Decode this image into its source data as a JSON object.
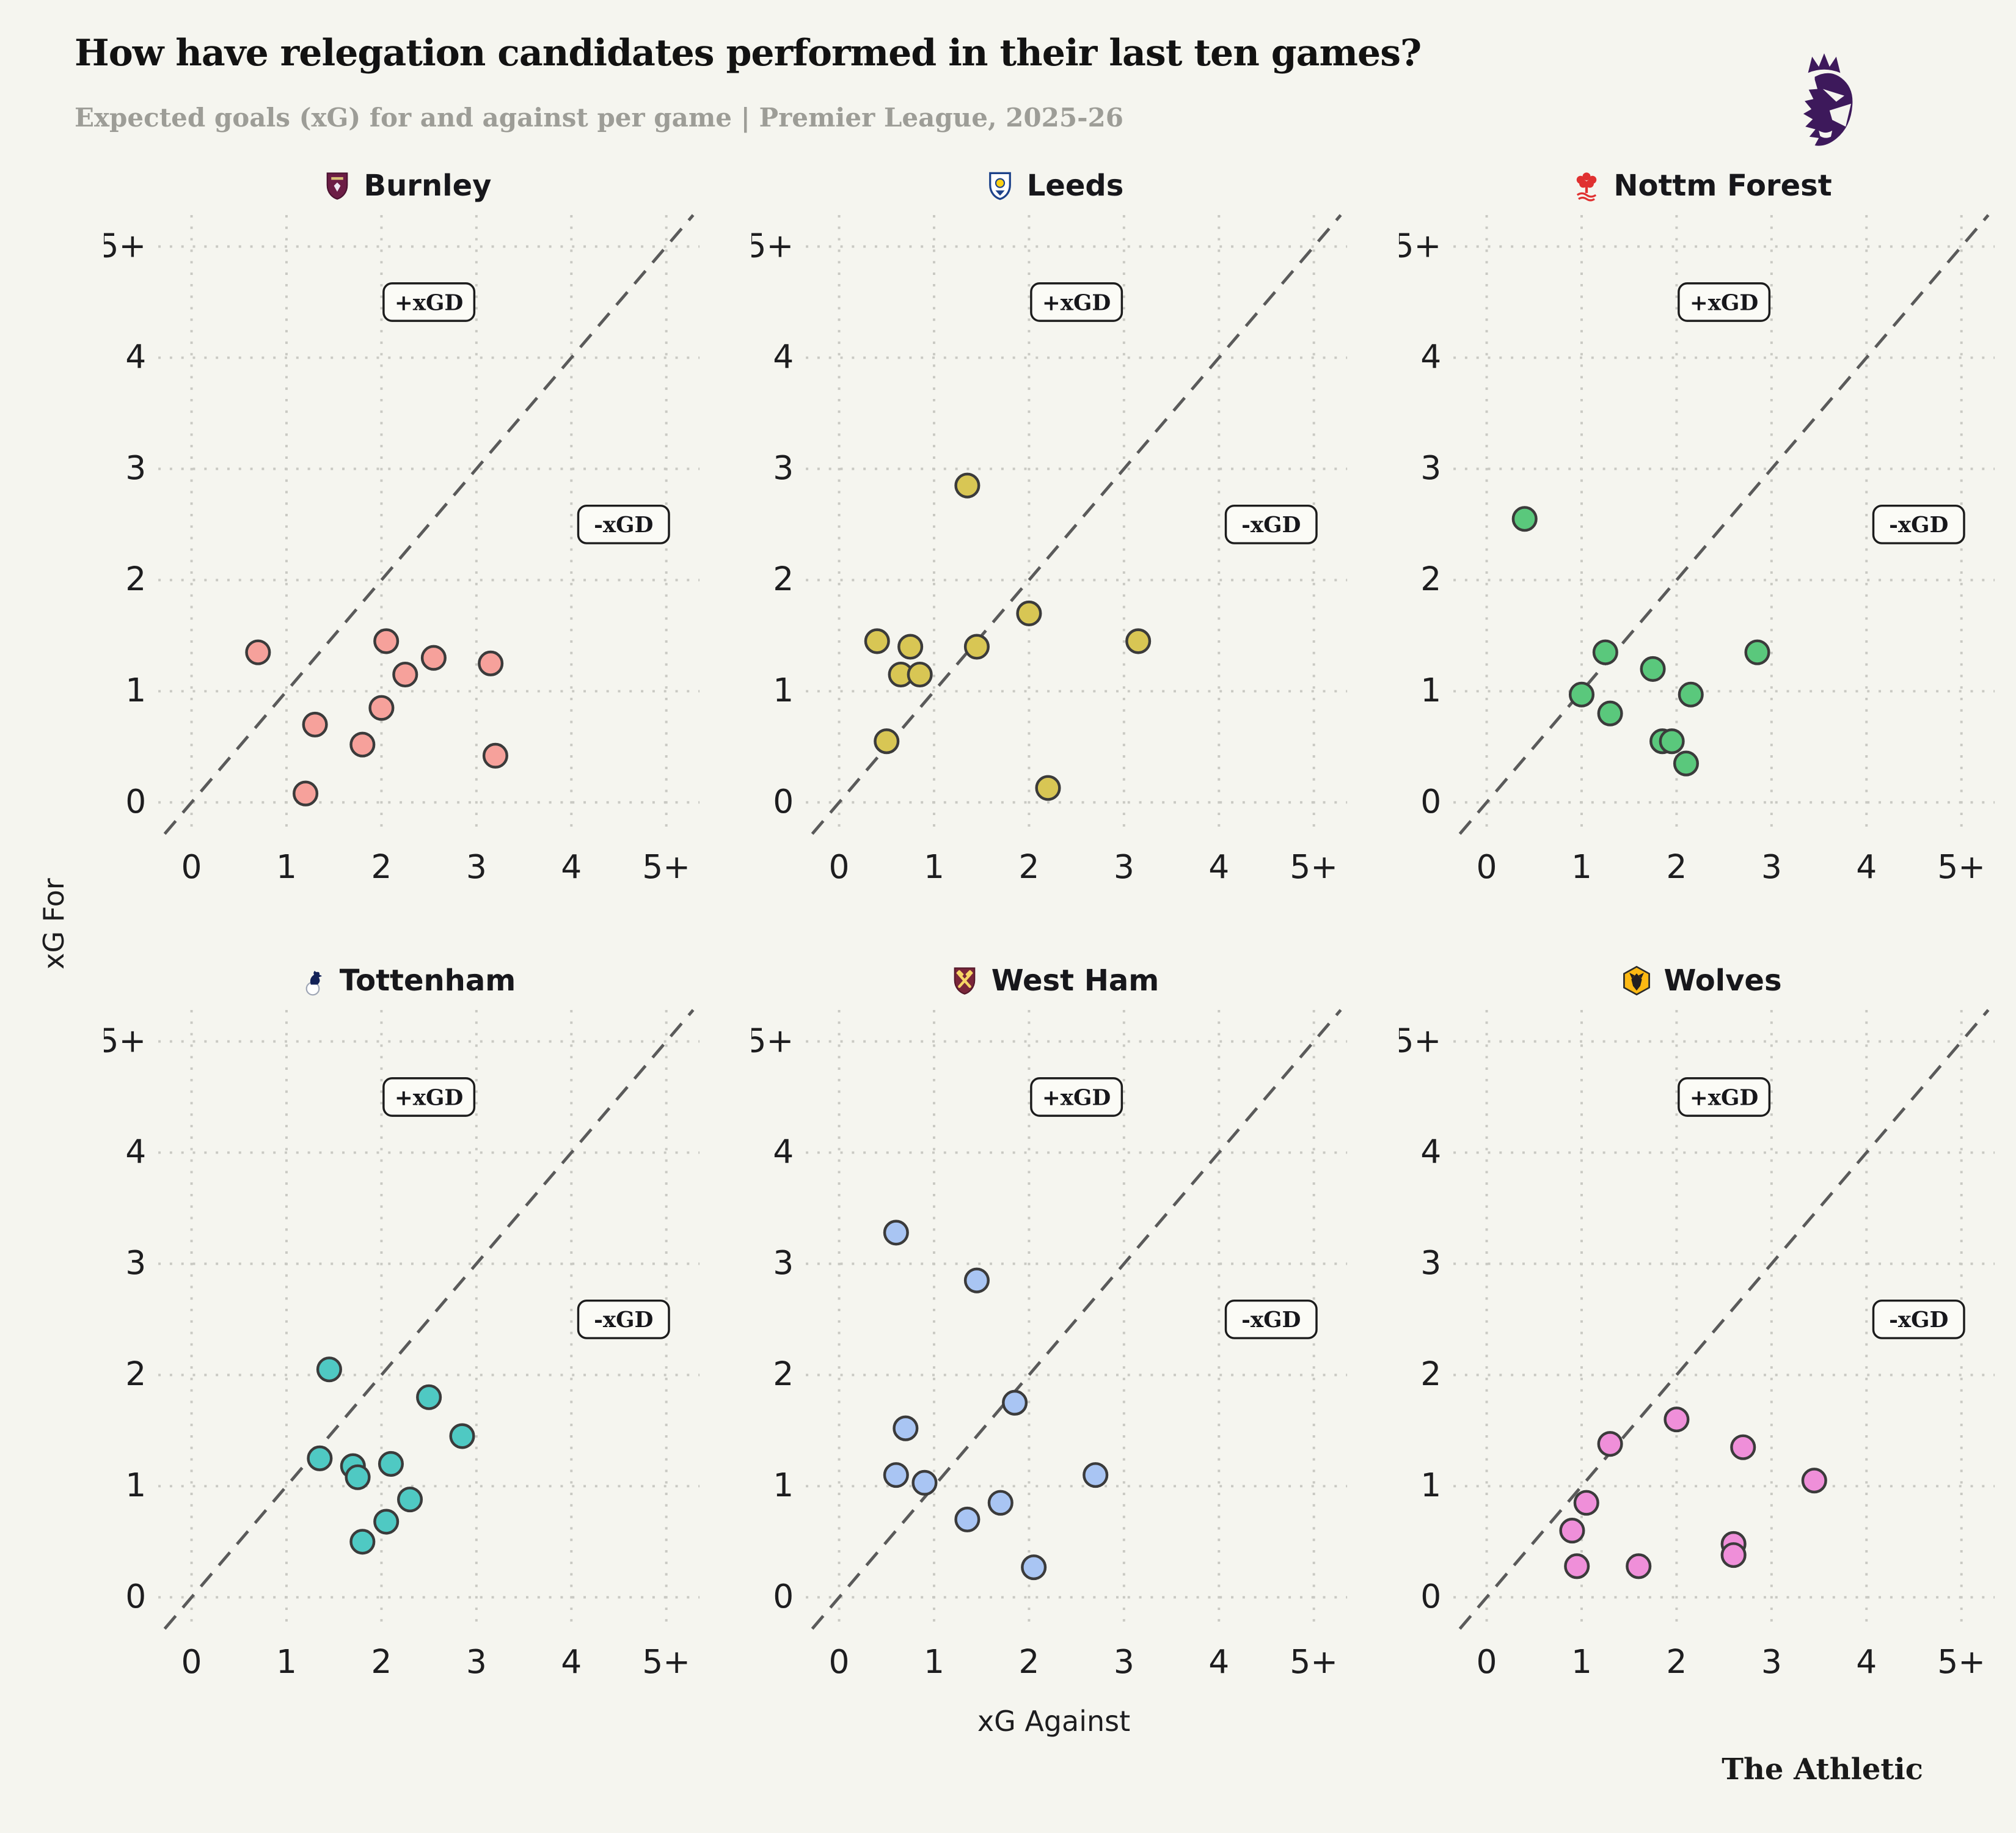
{
  "header": {
    "title": "How have relegation candidates performed in their last ten games?",
    "subtitle": "Expected goals (xG) for and against per game | Premier League, 2025-26"
  },
  "branding": {
    "league_logo_icon": "premier-league-lion-icon",
    "credit": "The Athletic"
  },
  "axes": {
    "xlabel": "xG Against",
    "ylabel": "xG For",
    "ticks": [
      "0",
      "1",
      "2",
      "3",
      "4",
      "5+"
    ],
    "range": [
      0,
      5
    ],
    "grid": "dotted",
    "diagonal_reference_line": "y = x, dashed"
  },
  "annotations": {
    "above_diagonal": "+xGD",
    "below_diagonal": "-xGD"
  },
  "colors": {
    "background": "#F5F5EF",
    "grid_dots": "#C9C9C3",
    "diagonal": "#5A5A5A",
    "ink": "#17171B",
    "subtitle": "#9D9D97",
    "annotation_box_fill": "#FBFBF6",
    "point_stroke": "#3B3B3B",
    "premier_league_purple": "#3D195B"
  },
  "chart_data": [
    {
      "type": "scatter",
      "id": "burnley",
      "title": "Burnley",
      "badge_icon": "burnley-badge-icon",
      "point_color": "#F6A19B",
      "xlabel": "xG Against",
      "ylabel": "xG For",
      "xlim": [
        0,
        5
      ],
      "ylim": [
        0,
        5
      ],
      "points": [
        [
          0.7,
          1.35
        ],
        [
          2.05,
          1.45
        ],
        [
          2.25,
          1.15
        ],
        [
          2.55,
          1.3
        ],
        [
          3.15,
          1.25
        ],
        [
          2.0,
          0.85
        ],
        [
          1.3,
          0.7
        ],
        [
          1.8,
          0.52
        ],
        [
          3.2,
          0.42
        ],
        [
          1.2,
          0.08
        ]
      ]
    },
    {
      "type": "scatter",
      "id": "leeds",
      "title": "Leeds",
      "badge_icon": "leeds-badge-icon",
      "point_color": "#D8C654",
      "xlabel": "xG Against",
      "ylabel": "xG For",
      "xlim": [
        0,
        5
      ],
      "ylim": [
        0,
        5
      ],
      "points": [
        [
          1.35,
          2.85
        ],
        [
          2.0,
          1.7
        ],
        [
          0.4,
          1.45
        ],
        [
          0.75,
          1.4
        ],
        [
          1.45,
          1.4
        ],
        [
          3.15,
          1.45
        ],
        [
          0.65,
          1.15
        ],
        [
          0.85,
          1.15
        ],
        [
          0.5,
          0.55
        ],
        [
          2.2,
          0.13
        ]
      ]
    },
    {
      "type": "scatter",
      "id": "nottm-forest",
      "title": "Nottm Forest",
      "badge_icon": "nottm-forest-badge-icon",
      "point_color": "#5AC87C",
      "xlabel": "xG Against",
      "ylabel": "xG For",
      "xlim": [
        0,
        5
      ],
      "ylim": [
        0,
        5
      ],
      "points": [
        [
          0.4,
          2.55
        ],
        [
          1.25,
          1.35
        ],
        [
          2.85,
          1.35
        ],
        [
          1.75,
          1.2
        ],
        [
          1.0,
          0.97
        ],
        [
          2.15,
          0.97
        ],
        [
          1.3,
          0.8
        ],
        [
          1.85,
          0.55
        ],
        [
          1.95,
          0.55
        ],
        [
          2.1,
          0.35
        ]
      ]
    },
    {
      "type": "scatter",
      "id": "tottenham",
      "title": "Tottenham",
      "badge_icon": "tottenham-badge-icon",
      "point_color": "#4FC9C3",
      "xlabel": "xG Against",
      "ylabel": "xG For",
      "xlim": [
        0,
        5
      ],
      "ylim": [
        0,
        5
      ],
      "points": [
        [
          1.45,
          2.05
        ],
        [
          2.5,
          1.8
        ],
        [
          2.85,
          1.45
        ],
        [
          1.35,
          1.25
        ],
        [
          1.7,
          1.18
        ],
        [
          2.1,
          1.2
        ],
        [
          1.75,
          1.08
        ],
        [
          2.3,
          0.88
        ],
        [
          2.05,
          0.68
        ],
        [
          1.8,
          0.5
        ]
      ]
    },
    {
      "type": "scatter",
      "id": "west-ham",
      "title": "West Ham",
      "badge_icon": "west-ham-badge-icon",
      "point_color": "#A9C5F3",
      "xlabel": "xG Against",
      "ylabel": "xG For",
      "xlim": [
        0,
        5
      ],
      "ylim": [
        0,
        5
      ],
      "points": [
        [
          0.6,
          3.28
        ],
        [
          1.45,
          2.85
        ],
        [
          1.85,
          1.75
        ],
        [
          0.7,
          1.52
        ],
        [
          0.6,
          1.1
        ],
        [
          0.9,
          1.03
        ],
        [
          2.7,
          1.1
        ],
        [
          1.7,
          0.85
        ],
        [
          1.35,
          0.7
        ],
        [
          2.05,
          0.27
        ]
      ]
    },
    {
      "type": "scatter",
      "id": "wolves",
      "title": "Wolves",
      "badge_icon": "wolves-badge-icon",
      "point_color": "#EF8FD9",
      "xlabel": "xG Against",
      "ylabel": "xG For",
      "xlim": [
        0,
        5
      ],
      "ylim": [
        0,
        5
      ],
      "points": [
        [
          2.0,
          1.6
        ],
        [
          1.3,
          1.38
        ],
        [
          2.7,
          1.35
        ],
        [
          3.45,
          1.05
        ],
        [
          1.05,
          0.85
        ],
        [
          0.9,
          0.6
        ],
        [
          0.95,
          0.28
        ],
        [
          1.6,
          0.28
        ],
        [
          2.6,
          0.48
        ],
        [
          2.6,
          0.38
        ]
      ]
    }
  ]
}
